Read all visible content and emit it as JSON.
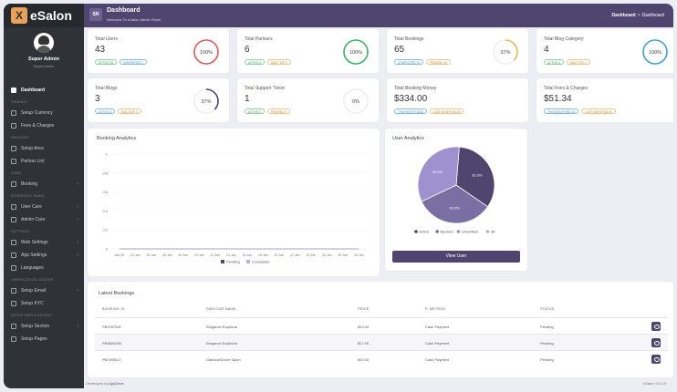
{
  "app": {
    "logo_mark": "X",
    "logo_text": "eSalon"
  },
  "profile": {
    "name": "Super Admin",
    "role": "Super Admin"
  },
  "sidebar": {
    "items": [
      {
        "type": "item",
        "label": "Dashboard",
        "active": true
      },
      {
        "type": "section",
        "label": "FINANCE"
      },
      {
        "type": "item",
        "label": "Setup Currency"
      },
      {
        "type": "item",
        "label": "Fees & Charges"
      },
      {
        "type": "section",
        "label": "PARLOUR"
      },
      {
        "type": "item",
        "label": "Setup Area"
      },
      {
        "type": "item",
        "label": "Parlour List"
      },
      {
        "type": "section",
        "label": "CARE"
      },
      {
        "type": "item",
        "label": "Booking",
        "chevron": true
      },
      {
        "type": "section",
        "label": "INTERFACE PANEL"
      },
      {
        "type": "item",
        "label": "User Care",
        "chevron": true
      },
      {
        "type": "item",
        "label": "Admin Care",
        "chevron": true
      },
      {
        "type": "section",
        "label": "SETTINGS"
      },
      {
        "type": "item",
        "label": "Web Settings",
        "chevron": true
      },
      {
        "type": "item",
        "label": "App Settings",
        "chevron": true
      },
      {
        "type": "item",
        "label": "Languages"
      },
      {
        "type": "section",
        "label": "VERIFICATION CENTER"
      },
      {
        "type": "item",
        "label": "Setup Email",
        "chevron": true
      },
      {
        "type": "item",
        "label": "Setup KYC"
      },
      {
        "type": "section",
        "label": "SETUP WEB CONTENT"
      },
      {
        "type": "item",
        "label": "Setup Section",
        "chevron": true
      },
      {
        "type": "item",
        "label": "Setup Pages"
      }
    ]
  },
  "header": {
    "badge": "SR",
    "title": "Dashboard",
    "subtitle": "Welcome To eSalon Admin Panel",
    "breadcrumb": [
      "Dashboard",
      "Dashboard"
    ],
    "breadcrumb_sep": ">"
  },
  "stats": [
    {
      "label": "Total Users",
      "value": "43",
      "pills": [
        {
          "text": "ACTIVE 43",
          "tone": "green"
        },
        {
          "text": "UNVERIFIED 0",
          "tone": "blue"
        }
      ],
      "percent": 100,
      "percent_label": "100%",
      "color": "#e05a5a"
    },
    {
      "label": "Total Parlours",
      "value": "6",
      "pills": [
        {
          "text": "ACTIVE 6",
          "tone": "green"
        },
        {
          "text": "INACTIVE 0",
          "tone": "orange"
        }
      ],
      "percent": 100,
      "percent_label": "100%",
      "color": "#3bb36a"
    },
    {
      "label": "Total Bookings",
      "value": "65",
      "pills": [
        {
          "text": "COMPLETED 24",
          "tone": "blue"
        },
        {
          "text": "PENDING 41",
          "tone": "orange"
        }
      ],
      "percent": 37,
      "percent_label": "37%",
      "color": "#f0b84a"
    },
    {
      "label": "Total Blog Category",
      "value": "4",
      "pills": [
        {
          "text": "ACTIVE 4",
          "tone": "green"
        },
        {
          "text": "INACTIVE 0",
          "tone": "orange"
        }
      ],
      "percent": 100,
      "percent_label": "100%",
      "color": "#3aa3e0"
    },
    {
      "label": "Total Blogs",
      "value": "3",
      "pills": [
        {
          "text": "ACTIVE 3",
          "tone": "blue"
        },
        {
          "text": "INACTIVE 0",
          "tone": "orange"
        }
      ],
      "percent": 37,
      "percent_label": "37%",
      "color": "#4f4670"
    },
    {
      "label": "Total Support Ticket",
      "value": "1",
      "pills": [
        {
          "text": "ACTIVE 0",
          "tone": "green"
        },
        {
          "text": "PENDING 1",
          "tone": "orange"
        }
      ],
      "percent": 0,
      "percent_label": "0%",
      "color": "#b9b0dd"
    },
    {
      "label": "Total Booking Money",
      "value": "$334.00",
      "pills": [
        {
          "text": "THIS MONTH $334",
          "tone": "blue"
        },
        {
          "text": "LAST MONTH $0.00",
          "tone": "orange"
        }
      ],
      "percent": null,
      "percent_label": "",
      "color": ""
    },
    {
      "label": "Total Fees & Charges",
      "value": "$51.34",
      "pills": [
        {
          "text": "THIS MONTH $51.34",
          "tone": "blue"
        },
        {
          "text": "LAST MONTH $0.00",
          "tone": "orange"
        }
      ],
      "percent": null,
      "percent_label": "",
      "color": ""
    }
  ],
  "chart_data": [
    {
      "type": "line",
      "title": "Booking Analytics",
      "categories": [
        "Jan 26",
        "24 Jan",
        "26 Jan",
        "28 Jan",
        "30 Jan",
        "10 Jan",
        "12 Jan",
        "14 Jan",
        "16 Jan",
        "18 Jan",
        "20 Jan",
        "22 Jan",
        "24 Jan",
        "26 Jan",
        "28 Jan",
        "30 Jan"
      ],
      "yticks": [
        "0",
        "0.2",
        "0.4",
        "0.6",
        "0.8",
        "1"
      ],
      "ylim": [
        0,
        1
      ],
      "series": [
        {
          "name": "Pending",
          "color": "#4f4670",
          "values": [
            0,
            0,
            0,
            0,
            0,
            0,
            0,
            0,
            0,
            0,
            0,
            0,
            0,
            0,
            0,
            0
          ]
        },
        {
          "name": "Completed",
          "color": "#b9b0dd",
          "values": [
            0,
            0,
            0,
            0,
            0,
            0,
            0,
            0,
            0,
            0,
            0,
            0,
            0,
            0,
            0,
            0
          ]
        }
      ],
      "legend": "bottom",
      "grid": true
    },
    {
      "type": "pie",
      "title": "User Analytics",
      "slices": [
        {
          "name": "Active",
          "value": 33.3,
          "label": "33.3%",
          "color": "#4f4670"
        },
        {
          "name": "Banned",
          "value": 33.3,
          "label": "33.3%",
          "color": "#7a6fa3"
        },
        {
          "name": "Unverified",
          "value": 33.3,
          "label": "33.3%",
          "color": "#9d91d0"
        },
        {
          "name": "All",
          "value": 0,
          "label": "",
          "color": "#b9b0dd"
        }
      ],
      "legend": "bottom"
    }
  ],
  "user_analytics": {
    "button": "View User"
  },
  "latest_bookings": {
    "title": "Latest Bookings",
    "columns": [
      "BOOKING ID",
      "PARLOUR NAME",
      "PRICE",
      "P. METHOD",
      "STATUS"
    ],
    "rows": [
      {
        "id": "PB3787541",
        "parlour": "Elegance Euphoria",
        "price": "$13.00",
        "method": "Cash Payment",
        "status": "Pending"
      },
      {
        "id": "PB4826396",
        "parlour": "Elegance Euphoria",
        "price": "$17.00",
        "method": "Cash Payment",
        "status": "Pending"
      },
      {
        "id": "PB7593617",
        "parlour": "GlamourGrove Salon",
        "price": "$10.00",
        "method": "Cash Payment",
        "status": "Pending"
      }
    ]
  },
  "footer": {
    "left_prefix": "Developed by",
    "left_brand": "AppDevs",
    "right": "eSalon V1.0.0"
  }
}
